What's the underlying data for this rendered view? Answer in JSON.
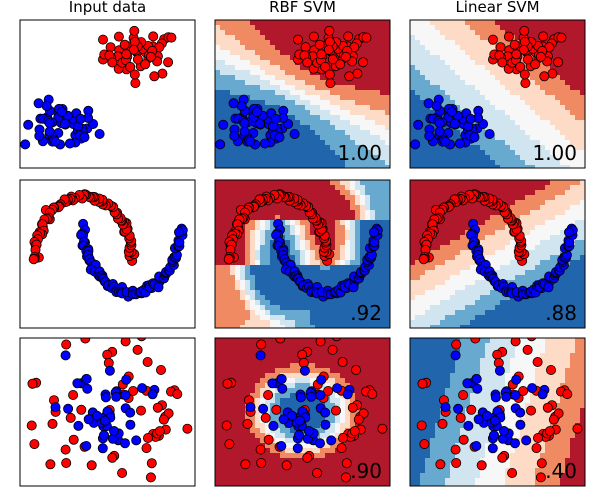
{
  "chart_data": {
    "type": "scatter",
    "column_titles": [
      "Input data",
      "RBF SVM",
      "Linear SVM"
    ],
    "colors": {
      "class_red": "#ff0000",
      "class_blue": "#0000ff",
      "map_red_dark": "#b2182b",
      "map_red": "#ef8a62",
      "map_red_light": "#fddbc7",
      "map_mid": "#f7f7f7",
      "map_blue_light": "#d1e5f0",
      "map_blue": "#67a9cf",
      "map_blue_dark": "#2166ac"
    },
    "grid": false,
    "rows": [
      {
        "dataset": "linearly-separable",
        "xlim": [
          -2.6,
          2.6
        ],
        "ylim": [
          -3.3,
          3.3
        ],
        "scores": {
          "RBF SVM": "1.00",
          "Linear SVM": "1.00"
        },
        "clusters": [
          {
            "class": "red",
            "center": [
              1.0,
              1.8
            ],
            "spread": [
              0.55,
              0.5
            ],
            "n": 55
          },
          {
            "class": "blue",
            "center": [
              -1.4,
              -1.5
            ],
            "spread": [
              0.55,
              0.5
            ],
            "n": 55
          }
        ]
      },
      {
        "dataset": "moons",
        "xlim": [
          -1.3,
          2.3
        ],
        "ylim": [
          -1.05,
          1.25
        ],
        "scores": {
          "RBF SVM": ".92",
          "Linear SVM": ".88"
        },
        "moons": [
          {
            "class": "red",
            "center": [
              0.0,
              0.0
            ],
            "radius": 1.0,
            "arc": "upper",
            "n": 90
          },
          {
            "class": "blue",
            "center": [
              1.0,
              0.5
            ],
            "radius": 1.0,
            "arc": "lower",
            "n": 90
          }
        ]
      },
      {
        "dataset": "circles",
        "xlim": [
          -1.35,
          1.35
        ],
        "ylim": [
          -1.35,
          1.35
        ],
        "scores": {
          "RBF SVM": ".90",
          "Linear SVM": ".40"
        },
        "rings": [
          {
            "class": "red",
            "radius": 0.95,
            "jitter": 0.3,
            "n": 60
          },
          {
            "class": "blue",
            "radius": 0.4,
            "jitter": 0.25,
            "n": 45
          }
        ]
      }
    ]
  }
}
